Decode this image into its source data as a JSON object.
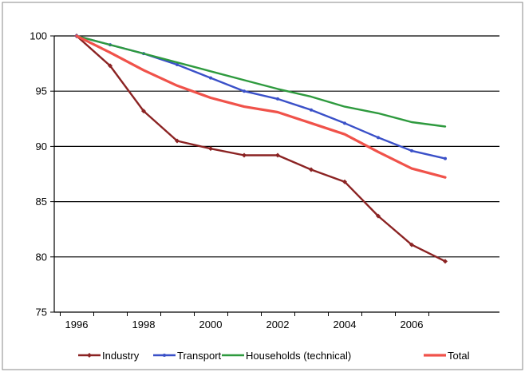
{
  "chart_data": {
    "type": "line",
    "title": "",
    "xlabel": "",
    "ylabel": "",
    "x": [
      1996,
      1997,
      1998,
      1999,
      2000,
      2001,
      2002,
      2003,
      2004,
      2005,
      2006,
      2007
    ],
    "xticks": [
      "1996",
      "1998",
      "2000",
      "2002",
      "2004",
      "2006"
    ],
    "yticks": [
      "75",
      "80",
      "85",
      "90",
      "95",
      "100"
    ],
    "xlim": [
      1996,
      2007
    ],
    "ylim": [
      75,
      100
    ],
    "grid": "horizontal",
    "legend_position": "bottom",
    "series": [
      {
        "name": "Industry",
        "color": "#8B2323",
        "marker": "diamond",
        "values": [
          100,
          97.3,
          93.2,
          90.5,
          89.8,
          89.2,
          89.2,
          87.9,
          86.8,
          83.7,
          81.1,
          79.6
        ]
      },
      {
        "name": "Transport",
        "color": "#3A50C8",
        "marker": "dot",
        "values": [
          100,
          99.2,
          98.4,
          97.4,
          96.2,
          95.0,
          94.3,
          93.3,
          92.1,
          90.8,
          89.6,
          88.9
        ]
      },
      {
        "name": "Households (technical)",
        "color": "#2E9A3E",
        "marker": "none",
        "values": [
          100,
          99.2,
          98.4,
          97.6,
          96.8,
          96.0,
          95.2,
          94.5,
          93.6,
          93.0,
          92.2,
          91.8
        ]
      },
      {
        "name": "Total",
        "color": "#F0524A",
        "marker": "none",
        "values": [
          100,
          98.5,
          96.9,
          95.5,
          94.4,
          93.6,
          93.1,
          92.1,
          91.1,
          89.5,
          88.0,
          87.2
        ]
      }
    ]
  }
}
